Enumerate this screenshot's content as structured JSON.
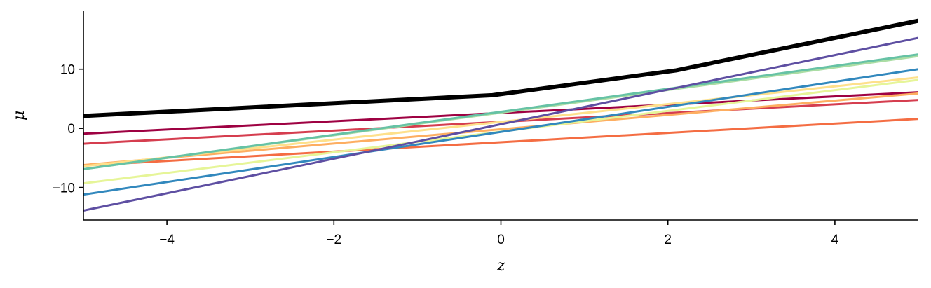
{
  "chart_data": {
    "type": "line",
    "xlabel": "z",
    "ylabel": "μ",
    "xlim": [
      -5,
      5
    ],
    "ylim": [
      -15.5,
      19.8
    ],
    "xticks": [
      -4,
      -2,
      0,
      2,
      4
    ],
    "yticks": [
      -10,
      0,
      10
    ],
    "grid": false,
    "series": [
      {
        "color": "#9e0142",
        "width": 3,
        "points": [
          [
            -5,
            -0.9
          ],
          [
            5,
            6.1
          ]
        ]
      },
      {
        "color": "#d53e4f",
        "width": 3,
        "points": [
          [
            -5,
            -2.6
          ],
          [
            5,
            4.8
          ]
        ]
      },
      {
        "color": "#f46d43",
        "width": 3,
        "points": [
          [
            -5,
            -6.3
          ],
          [
            5,
            1.6
          ]
        ]
      },
      {
        "color": "#fdae61",
        "width": 3,
        "points": [
          [
            -5,
            -6.2
          ],
          [
            5,
            5.9
          ]
        ]
      },
      {
        "color": "#fee08b",
        "width": 3,
        "points": [
          [
            -5,
            -6.4
          ],
          [
            5,
            8.6
          ]
        ]
      },
      {
        "color": "#e6f598",
        "width": 3,
        "points": [
          [
            -5,
            -9.3
          ],
          [
            5,
            8.2
          ]
        ]
      },
      {
        "color": "#abdda4",
        "width": 3,
        "points": [
          [
            -5,
            -6.9
          ],
          [
            5,
            12.2
          ]
        ]
      },
      {
        "color": "#66c2a5",
        "width": 3,
        "points": [
          [
            -5,
            -6.9
          ],
          [
            5,
            12.5
          ]
        ]
      },
      {
        "color": "#3288bd",
        "width": 3,
        "points": [
          [
            -5,
            -11.2
          ],
          [
            5,
            10.0
          ]
        ]
      },
      {
        "color": "#5e4fa2",
        "width": 3,
        "points": [
          [
            -5,
            -13.9
          ],
          [
            5,
            15.3
          ]
        ]
      },
      {
        "color": "#000000",
        "width": 6,
        "points": [
          [
            -5,
            2.1
          ],
          [
            -0.1,
            5.6
          ],
          [
            2.1,
            9.8
          ],
          [
            5,
            18.2
          ]
        ]
      }
    ]
  }
}
